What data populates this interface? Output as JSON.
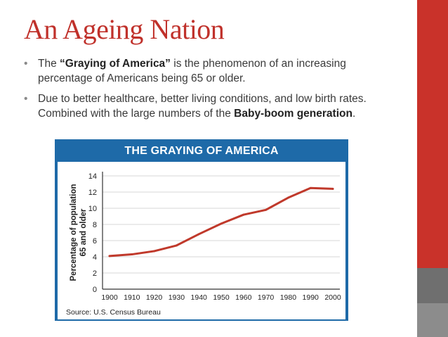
{
  "slide": {
    "title": "An Ageing Nation",
    "bullet1": {
      "pre": "The ",
      "bold": "“Graying of America”",
      "post": " is the phenomenon of an increasing percentage of Americans being 65 or older."
    },
    "bullet2": {
      "pre": "Due to better healthcare, better living conditions, and low birth rates. Combined with the large numbers of the ",
      "bold": "Baby-boom generation",
      "post": "."
    },
    "bullet_symbol": "•"
  },
  "colors": {
    "title": "#c0312b",
    "sidebar_red": "#c9322a",
    "chart_header": "#1e6aa8",
    "line": "#c0392b"
  },
  "chart_data": {
    "type": "line",
    "title": "THE GRAYING OF AMERICA",
    "xlabel": "",
    "ylabel": "Percentage of population 65 and older",
    "ylabel_lines": [
      "Percentage of population",
      "65 and older"
    ],
    "x": [
      1900,
      1910,
      1920,
      1930,
      1940,
      1950,
      1960,
      1970,
      1980,
      1990,
      2000
    ],
    "values": [
      4.1,
      4.3,
      4.7,
      5.4,
      6.8,
      8.1,
      9.2,
      9.8,
      11.3,
      12.5,
      12.4
    ],
    "yticks": [
      0,
      2,
      4,
      6,
      8,
      10,
      12,
      14
    ],
    "ylim": [
      0,
      14
    ],
    "grid": true,
    "source": "Source: U.S. Census Bureau"
  }
}
